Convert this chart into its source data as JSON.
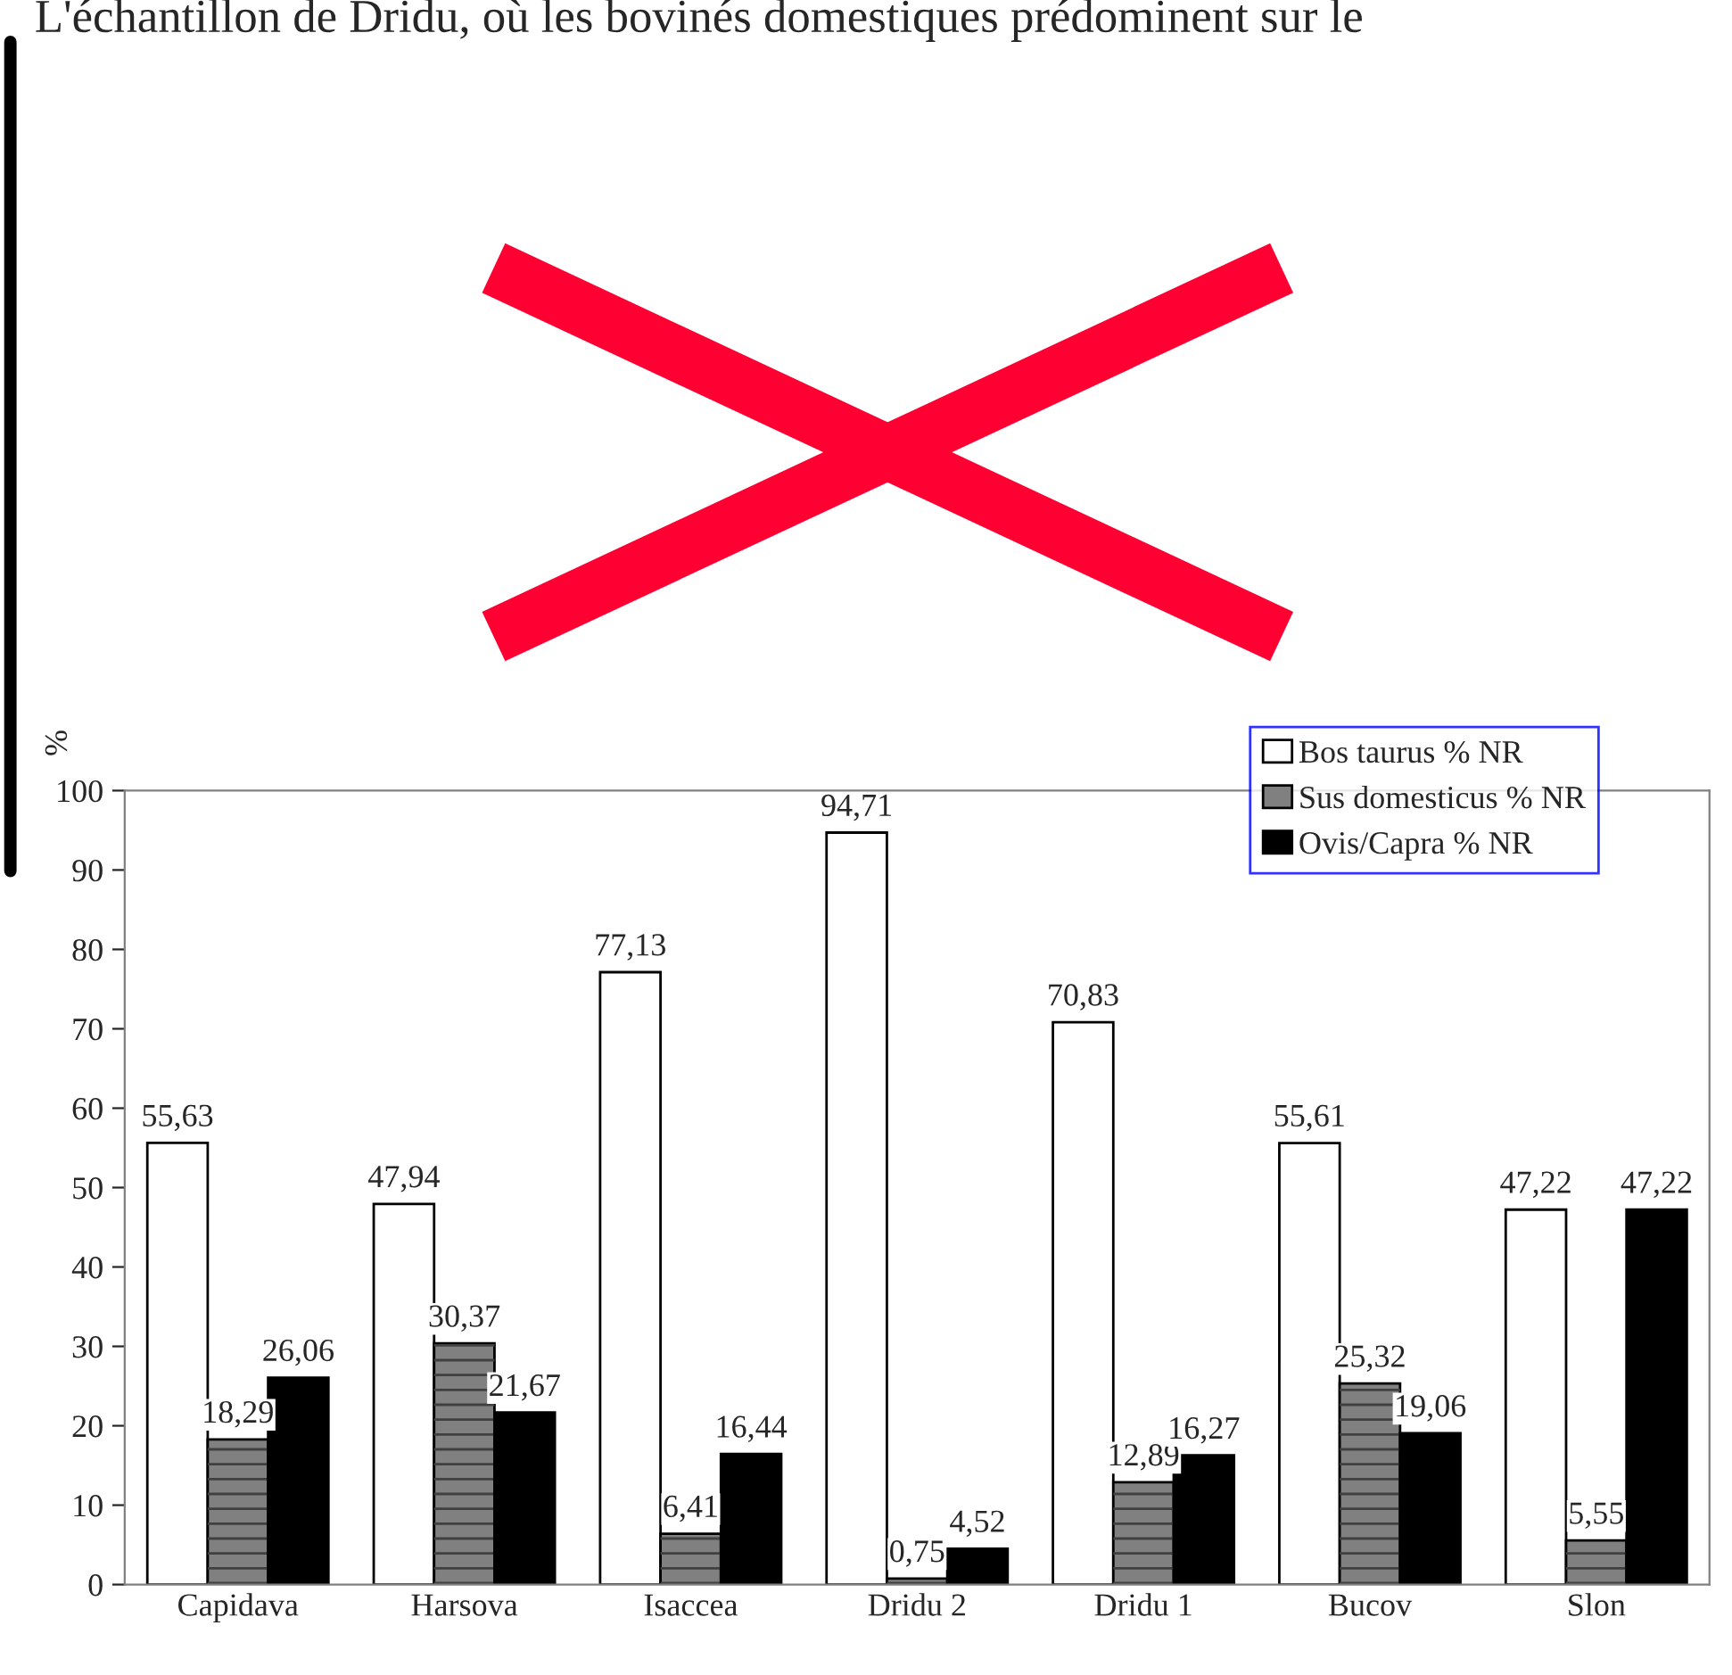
{
  "chart_data": {
    "type": "bar",
    "annotations": [
      "L'échantillon de Dridu, où les bovinés domestiques prédominent sur le"
    ],
    "ylabel": "%",
    "categories": [
      "Capidava",
      "Harsova",
      "Isaccea",
      "Dridu 2",
      "Dridu 1",
      "Bucov",
      "Slon"
    ],
    "series": [
      {
        "name": "Bos taurus % NR",
        "color": "#ffffff",
        "values": [
          55.63,
          47.94,
          77.13,
          94.71,
          70.83,
          55.61,
          47.22
        ],
        "value_labels": [
          "55,63",
          "47,94",
          "77,13",
          "94,71",
          "70,83",
          "55,61",
          "47,22"
        ]
      },
      {
        "name": "Sus domesticus % NR",
        "color": "#808080",
        "values": [
          18.29,
          30.37,
          6.41,
          0.75,
          12.89,
          25.32,
          5.55
        ],
        "value_labels": [
          "18,29",
          "30,37",
          "6,41",
          "0,75",
          "12,89",
          "25,32",
          "5,55"
        ]
      },
      {
        "name": "Ovis/Capra % NR",
        "color": "#000000",
        "values": [
          26.06,
          21.67,
          16.44,
          4.52,
          16.27,
          19.06,
          47.22
        ],
        "value_labels": [
          "26,06",
          "21,67",
          "16,44",
          "4,52",
          "16,27",
          "19,06",
          "47,22"
        ]
      }
    ],
    "ylim": [
      0,
      100
    ],
    "yticks": [
      0,
      10,
      20,
      30,
      40,
      50,
      60,
      70,
      80,
      90,
      100
    ],
    "grid": false,
    "legend": "top right"
  }
}
